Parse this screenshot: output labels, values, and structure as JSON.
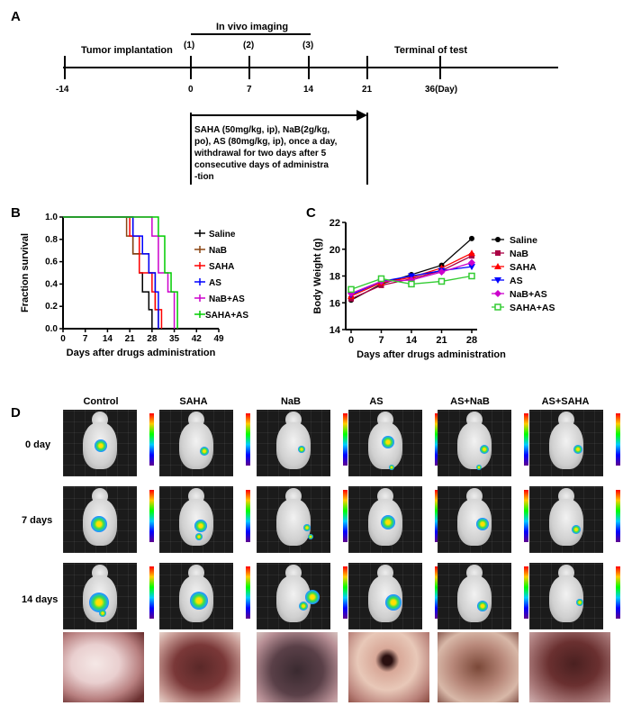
{
  "panelA": {
    "letter": "A",
    "in_vivo_label": "In vivo imaging",
    "tumor_label": "Tumor implantation",
    "terminal_label": "Terminal of test",
    "markers": [
      "(1)",
      "(2)",
      "(3)"
    ],
    "ticks": [
      "-14",
      "0",
      "7",
      "14",
      "21",
      "36(Day)"
    ],
    "treatment_lines": [
      "SAHA (50mg/kg, ip), NaB(2g/kg,",
      "po), AS (80mg/kg, ip), once a day,",
      "withdrawal for two days after 5",
      "consecutive days of administra",
      "-tion"
    ]
  },
  "panelB": {
    "letter": "B"
  },
  "panelC": {
    "letter": "C"
  },
  "panelD": {
    "letter": "D",
    "columns": [
      "Control",
      "SAHA",
      "NaB",
      "AS",
      "AS+NaB",
      "AS+SAHA"
    ],
    "rows": [
      "0 day",
      "7 days",
      "14 days"
    ]
  },
  "chart_data": [
    {
      "type": "line",
      "subtype": "kaplan-meier",
      "title": "",
      "xlabel": "Days after drugs administration",
      "ylabel": "Fraction survival",
      "xlim": [
        0,
        49
      ],
      "ylim": [
        0,
        1.0
      ],
      "xticks": [
        "0",
        "7",
        "14",
        "21",
        "28",
        "35",
        "42",
        "49"
      ],
      "yticks": [
        "0.0",
        "0.2",
        "0.4",
        "0.6",
        "0.8",
        "1.0"
      ],
      "series": [
        {
          "name": "Saline",
          "color": "#000000",
          "x": [
            0,
            21,
            22,
            24,
            25,
            27,
            28
          ],
          "y": [
            1.0,
            1.0,
            0.67,
            0.5,
            0.33,
            0.17,
            0.0
          ]
        },
        {
          "name": "NaB",
          "color": "#8B4513",
          "x": [
            0,
            18,
            20,
            22,
            27,
            29,
            30
          ],
          "y": [
            1.0,
            1.0,
            0.83,
            0.67,
            0.5,
            0.17,
            0.0
          ]
        },
        {
          "name": "SAHA",
          "color": "#ff0000",
          "x": [
            0,
            18,
            21,
            24,
            28,
            29,
            31
          ],
          "y": [
            1.0,
            1.0,
            0.83,
            0.5,
            0.33,
            0.17,
            0.0
          ]
        },
        {
          "name": "AS",
          "color": "#0000ff",
          "x": [
            0,
            20,
            22,
            25,
            27,
            29,
            30
          ],
          "y": [
            1.0,
            1.0,
            0.83,
            0.67,
            0.5,
            0.33,
            0.0
          ]
        },
        {
          "name": "NaB+AS",
          "color": "#cc00cc",
          "x": [
            0,
            24,
            28,
            30,
            33,
            35
          ],
          "y": [
            1.0,
            1.0,
            0.83,
            0.5,
            0.33,
            0.0
          ]
        },
        {
          "name": "SAHA+AS",
          "color": "#00cc00",
          "x": [
            0,
            28,
            30,
            32,
            34,
            36
          ],
          "y": [
            1.0,
            1.0,
            0.83,
            0.5,
            0.33,
            0.0
          ]
        }
      ]
    },
    {
      "type": "line",
      "title": "",
      "xlabel": "Days after drugs administration",
      "ylabel": "Body Weight (g)",
      "xlim": [
        0,
        28
      ],
      "ylim": [
        14,
        22
      ],
      "xticks": [
        "0",
        "7",
        "14",
        "21",
        "28"
      ],
      "yticks": [
        "14",
        "16",
        "18",
        "20",
        "22"
      ],
      "x": [
        0,
        7,
        14,
        21,
        28
      ],
      "series": [
        {
          "name": "Saline",
          "color": "#000000",
          "marker": "circle",
          "values": [
            16.2,
            17.4,
            18.1,
            18.8,
            20.8
          ]
        },
        {
          "name": "NaB",
          "color": "#aa0044",
          "marker": "square",
          "values": [
            16.3,
            17.3,
            17.8,
            18.4,
            19.5
          ]
        },
        {
          "name": "SAHA",
          "color": "#ff0000",
          "marker": "triangle",
          "values": [
            16.5,
            17.5,
            17.9,
            18.6,
            19.7
          ]
        },
        {
          "name": "AS",
          "color": "#0000ff",
          "marker": "triangle-down",
          "values": [
            16.6,
            17.6,
            18.0,
            18.4,
            18.7
          ]
        },
        {
          "name": "NaB+AS",
          "color": "#cc00cc",
          "marker": "diamond",
          "values": [
            16.7,
            17.6,
            17.7,
            18.3,
            19.0
          ]
        },
        {
          "name": "SAHA+AS",
          "color": "#33cc33",
          "marker": "open-square",
          "values": [
            17.0,
            17.8,
            17.4,
            17.6,
            18.0
          ]
        }
      ]
    }
  ]
}
